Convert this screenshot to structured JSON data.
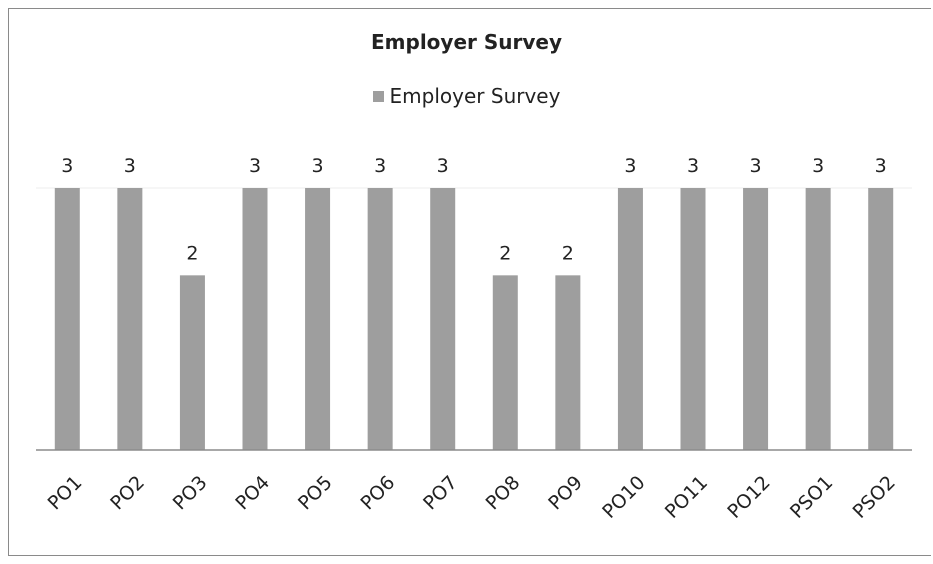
{
  "chart_data": {
    "type": "bar",
    "title": "Employer Survey",
    "categories": [
      "PO1",
      "PO2",
      "PO3",
      "PO4",
      "PO5",
      "PO6",
      "PO7",
      "PO8",
      "PO9",
      "PO10",
      "PO11",
      "PO12",
      "PSO1",
      "PSO2"
    ],
    "series": [
      {
        "name": "Employer Survey",
        "values": [
          3,
          3,
          2,
          3,
          3,
          3,
          3,
          2,
          2,
          3,
          3,
          3,
          3,
          3
        ]
      }
    ],
    "ylim": [
      0,
      3
    ],
    "xlabel": "",
    "ylabel": "",
    "legend_position": "top-center",
    "grid": true,
    "data_labels": true,
    "colors": {
      "bar": "#9e9e9e",
      "axis": "#8c8c8c",
      "grid": "#ececec",
      "text": "#222222"
    }
  }
}
